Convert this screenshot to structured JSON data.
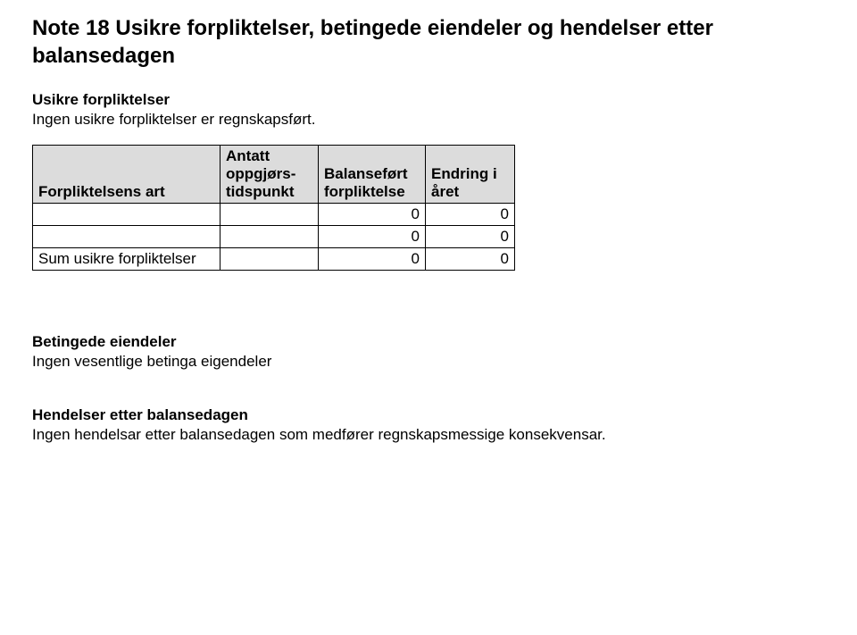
{
  "heading": "Note 18 Usikre forpliktelser, betingede eiendeler og hendelser etter balansedagen",
  "section1": {
    "title": "Usikre forpliktelser",
    "text": "Ingen usikre forpliktelser er regnskapsført."
  },
  "table": {
    "headers": {
      "col1": "Forpliktelsens art",
      "col2": "Antatt oppgjørs-tidspunkt",
      "col3": "Balanseført forpliktelse",
      "col4": "Endring i året"
    },
    "rows": [
      {
        "c1": "",
        "c2": "",
        "c3": "0",
        "c4": "0"
      },
      {
        "c1": "",
        "c2": "",
        "c3": "0",
        "c4": "0"
      }
    ],
    "footer": {
      "c1": "Sum usikre forpliktelser",
      "c2": "",
      "c3": "0",
      "c4": "0"
    },
    "header_bg": "#dcdcdc",
    "border_color": "#000000"
  },
  "section2": {
    "title": "Betingede eiendeler",
    "text": "Ingen vesentlige betinga eigendeler"
  },
  "section3": {
    "title": "Hendelser etter balansedagen",
    "text": "Ingen hendelsar etter balansedagen som medfører regnskapsmessige konsekvensar."
  }
}
